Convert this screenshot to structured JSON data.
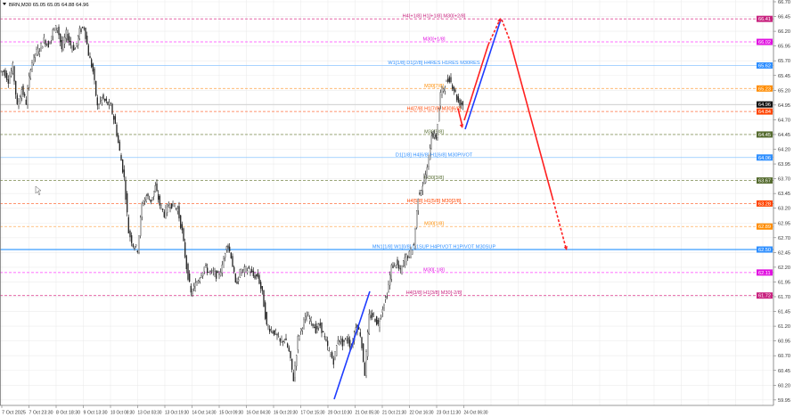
{
  "header": {
    "symbol_line": "BRN,M30  65.05 65.05 64.88 64.96",
    "menu_icon": "triangle-down-icon"
  },
  "chart_data": {
    "type": "candlestick",
    "symbol": "BRN",
    "timeframe": "M30",
    "ohlc_header": {
      "open": 65.05,
      "high": 65.05,
      "low": 64.88,
      "close": 64.96
    },
    "current_price": 64.96,
    "ylim": [
      59.95,
      66.7
    ],
    "yticks": [
      "66.70",
      "66.45",
      "66.20",
      "65.95",
      "65.70",
      "65.45",
      "65.20",
      "64.95",
      "64.70",
      "64.45",
      "64.20",
      "63.95",
      "63.70",
      "63.45",
      "63.20",
      "62.95",
      "62.70",
      "62.45",
      "62.20",
      "61.95",
      "61.70",
      "61.45",
      "61.20",
      "60.95",
      "60.70",
      "60.45",
      "60.20",
      "59.95"
    ],
    "xticks": [
      "7 Oct 2025",
      "7 Oct 23:30",
      "8 Oct 18:30",
      "9 Oct 13:30",
      "10 Oct 08:30",
      "13 Oct 03:30",
      "13 Oct 19:30",
      "14 Oct 14:30",
      "15 Oct 09:30",
      "16 Oct 04:30",
      "16 Oct 20:30",
      "17 Oct 15:30",
      "20 Oct 10:30",
      "21 Oct 05:30",
      "21 Oct 21:30",
      "22 Oct 16:30",
      "23 Oct 11:30",
      "24 Oct 06:30"
    ],
    "grid": true,
    "closes": [
      65.52,
      65.37,
      65.6,
      64.92,
      65.22,
      64.99,
      65.6,
      65.82,
      65.9,
      66.05,
      65.97,
      66.2,
      66.28,
      65.9,
      66.16,
      65.97,
      65.9,
      66.2,
      66.28,
      65.82,
      65.52,
      64.92,
      65.07,
      64.99,
      64.92,
      64.62,
      64.16,
      63.71,
      62.8,
      62.58,
      62.5,
      63.26,
      63.41,
      63.33,
      63.56,
      63.26,
      63.1,
      63.26,
      63.26,
      63.18,
      62.8,
      62.2,
      61.75,
      61.9,
      62.05,
      62.2,
      62.12,
      62.1,
      62.05,
      62.2,
      62.61,
      62.4,
      61.9,
      62.11,
      62.15,
      62.17,
      62.05,
      62.05,
      61.75,
      61.2,
      61.14,
      61.07,
      60.92,
      60.99,
      60.76,
      60.3,
      60.99,
      61.22,
      61.37,
      61.29,
      61.14,
      61.22,
      60.99,
      60.76,
      60.61,
      60.99,
      60.91,
      60.99,
      60.84,
      61.22,
      61.07,
      60.4,
      61.37,
      61.37,
      61.22,
      61.52,
      61.75,
      62.2,
      62.27,
      62.12,
      62.35,
      62.42,
      62.58,
      63.41,
      63.6,
      63.86,
      64.46,
      64.4,
      65.14,
      65.3,
      65.4,
      65.22,
      65.0,
      64.96
    ],
    "levels": [
      {
        "price": 66.41,
        "label": "H4[+1/8] H1[+1/8] M30[+2/8]",
        "badge": "66.41",
        "color": "#e0509a",
        "badge_color": "#c8237f",
        "style": "dashed"
      },
      {
        "price": 66.02,
        "label": "M30[+1/8]",
        "badge": "66.02",
        "color": "#ff40ff",
        "badge_color": "#e010e0",
        "style": "dashed"
      },
      {
        "price": 65.62,
        "label": "W1[1/8] D1[2/8] H4RES H1RES M30RES",
        "badge": "65.62",
        "color": "#8cc6ff",
        "badge_color": "#2f8fff",
        "style": "solid"
      },
      {
        "price": 65.23,
        "label": "M30[7/8]",
        "badge": "65.23",
        "color": "#ffb060",
        "badge_color": "#ff8c00",
        "style": "dashed"
      },
      {
        "price": 64.84,
        "label": "H4[7/8] H1[7/8] M30[6/8]",
        "badge": "64.84",
        "color": "#ff7040",
        "badge_color": "#ff4500",
        "style": "dashed"
      },
      {
        "price": 64.45,
        "label": "M30[5/8]",
        "badge": "64.45",
        "color": "#8c9a66",
        "badge_color": "#556b2f",
        "style": "dashed"
      },
      {
        "price": 64.06,
        "label": "D1[1/8] H4[6/8] H1[6/8] M30PIVOT",
        "badge": "64.06",
        "color": "#8cc6ff",
        "badge_color": "#2f8fff",
        "style": "solid"
      },
      {
        "price": 63.67,
        "label": "M30[3/8]",
        "badge": "63.67",
        "color": "#8c9a66",
        "badge_color": "#556b2f",
        "style": "dashed"
      },
      {
        "price": 63.28,
        "label": "H4[5/8] H1[5/8] M30[2/8]",
        "badge": "63.28",
        "color": "#ff7040",
        "badge_color": "#ff4500",
        "style": "dashed"
      },
      {
        "price": 62.89,
        "label": "M30[1/8]",
        "badge": "62.89",
        "color": "#ffb060",
        "badge_color": "#ff8c00",
        "style": "dashed"
      },
      {
        "price": 62.5,
        "label": "MN1[1/8] W1[0/8] D1SUP H4PIVOT H1PIVOT M30SUP",
        "badge": "62.50",
        "color": "#4da6ff",
        "badge_color": "#2f8fff",
        "style": "solid"
      },
      {
        "price": 62.11,
        "label": "M30[-1/8]",
        "badge": "62.11",
        "color": "#ff40ff",
        "badge_color": "#e010e0",
        "style": "dashed"
      },
      {
        "price": 61.72,
        "label": "H4[3/8] H1[3/8] M30[-2/8]",
        "badge": "61.72",
        "color": "#e0509a",
        "badge_color": "#c8237f",
        "style": "dashed"
      }
    ],
    "forecast_colors": {
      "bullish": "#1e3cff",
      "bearish": "#ff2020"
    }
  }
}
